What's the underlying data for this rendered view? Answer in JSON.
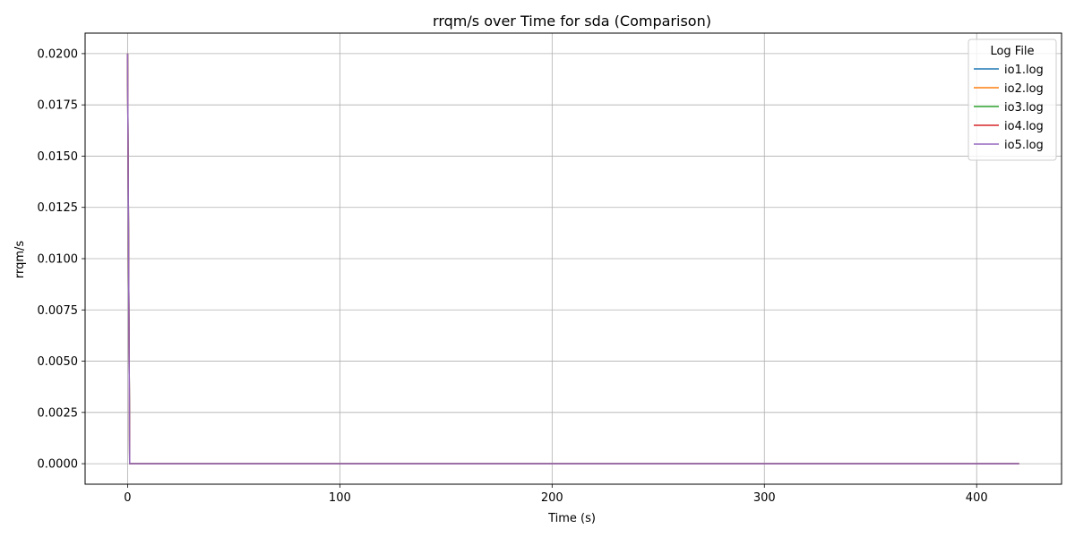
{
  "chart_data": {
    "type": "line",
    "title": "rrqm/s over Time for sda (Comparison)",
    "xlabel": "Time (s)",
    "ylabel": "rrqm/s",
    "xlim": [
      -20,
      440
    ],
    "ylim": [
      -0.001,
      0.021
    ],
    "xticks": [
      0,
      100,
      200,
      300,
      400
    ],
    "xtick_labels": [
      "0",
      "100",
      "200",
      "300",
      "400"
    ],
    "yticks": [
      0.0,
      0.0025,
      0.005,
      0.0075,
      0.01,
      0.0125,
      0.015,
      0.0175,
      0.02
    ],
    "ytick_labels": [
      "0.0000",
      "0.0025",
      "0.0050",
      "0.0075",
      "0.0100",
      "0.0125",
      "0.0150",
      "0.0175",
      "0.0200"
    ],
    "grid": true,
    "legend": {
      "title": "Log File",
      "placement": "top-right"
    },
    "series": [
      {
        "name": "io1.log",
        "color": "#1f77b4",
        "x": [
          0,
          1,
          2,
          420
        ],
        "y": [
          0.02,
          0.0,
          0.0,
          0.0
        ]
      },
      {
        "name": "io2.log",
        "color": "#ff7f0e",
        "x": [
          0,
          1,
          2,
          420
        ],
        "y": [
          0.02,
          0.0,
          0.0,
          0.0
        ]
      },
      {
        "name": "io3.log",
        "color": "#2ca02c",
        "x": [
          0,
          1,
          2,
          420
        ],
        "y": [
          0.02,
          0.0,
          0.0,
          0.0
        ]
      },
      {
        "name": "io4.log",
        "color": "#d62728",
        "x": [
          0,
          1,
          2,
          420
        ],
        "y": [
          0.02,
          0.0,
          0.0,
          0.0
        ]
      },
      {
        "name": "io5.log",
        "color": "#9467bd",
        "x": [
          0,
          1,
          2,
          420
        ],
        "y": [
          0.02,
          0.0,
          0.0,
          0.0
        ]
      }
    ]
  }
}
